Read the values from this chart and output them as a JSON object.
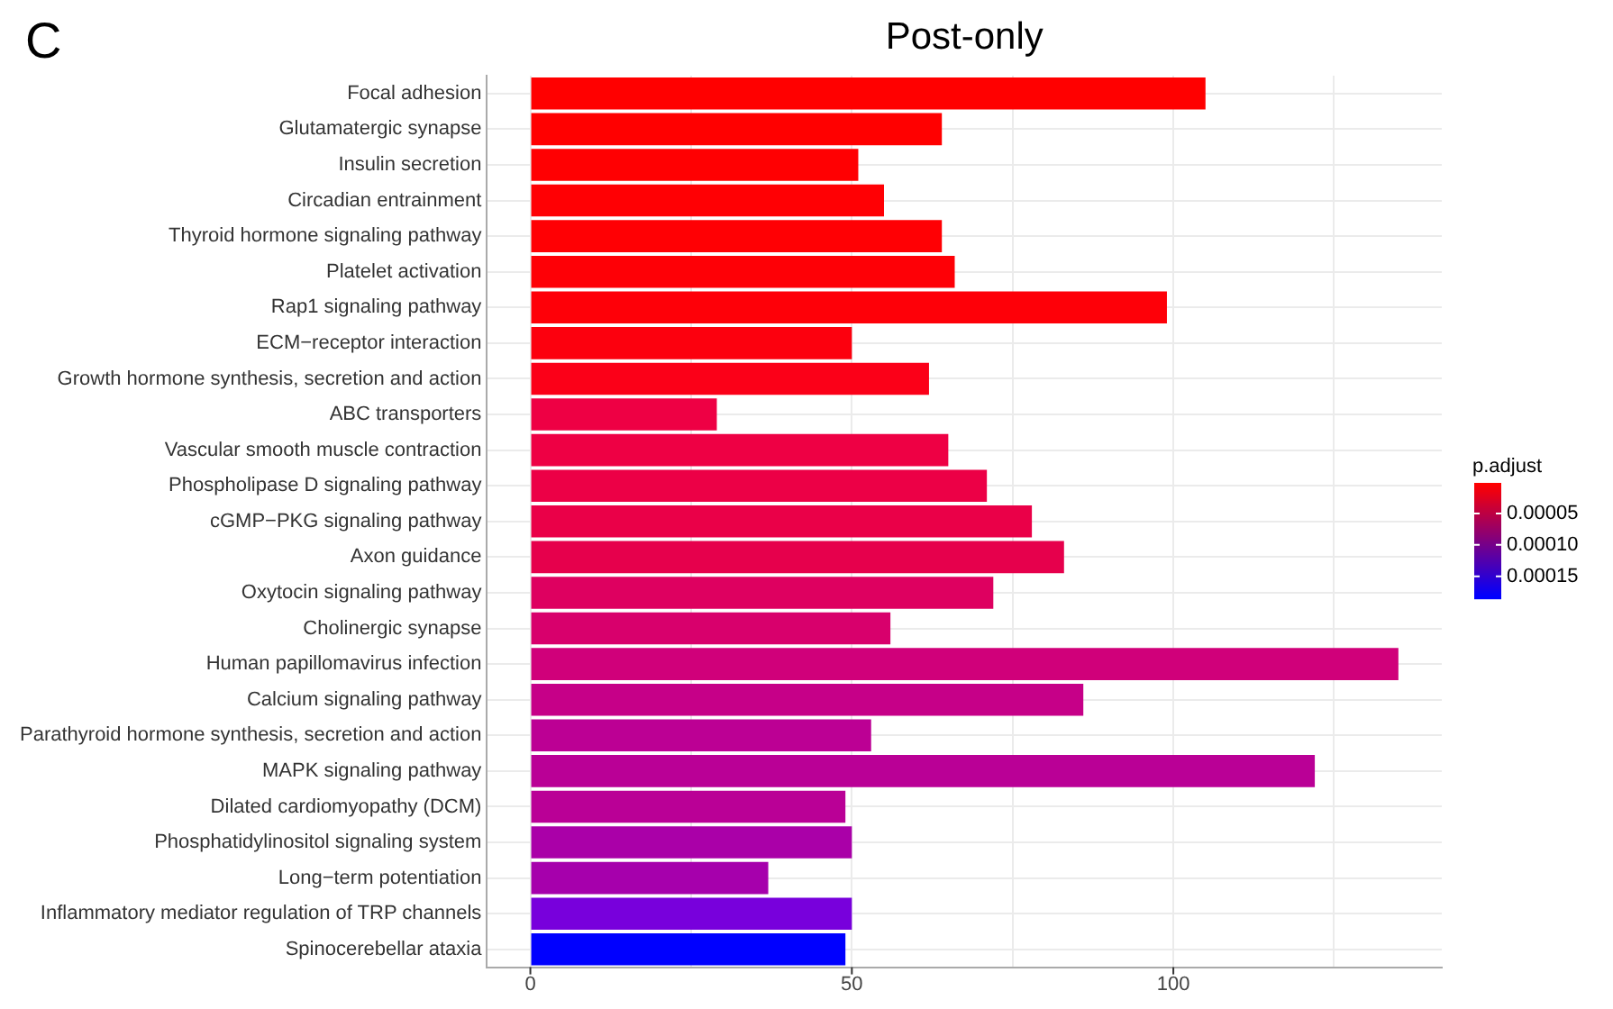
{
  "chart_data": {
    "type": "bar",
    "orientation": "horizontal",
    "title": "Post-only",
    "annotations": [
      "C"
    ],
    "clabel": "p.adjust",
    "categories": [
      "Focal adhesion",
      "Glutamatergic synapse",
      "Insulin secretion",
      "Circadian entrainment",
      "Thyroid hormone signaling pathway",
      "Platelet activation",
      "Rap1 signaling pathway",
      "ECM−receptor interaction",
      "Growth hormone synthesis, secretion and action",
      "ABC transporters",
      "Vascular smooth muscle contraction",
      "Phospholipase D signaling pathway",
      "cGMP−PKG signaling pathway",
      "Axon guidance",
      "Oxytocin signaling pathway",
      "Cholinergic synapse",
      "Human papillomavirus infection",
      "Calcium signaling pathway",
      "Parathyroid hormone synthesis, secretion and action",
      "MAPK signaling pathway",
      "Dilated cardiomyopathy (DCM)",
      "Phosphatidylinositol signaling system",
      "Long−term potentiation",
      "Inflammatory mediator regulation of TRP channels",
      "Spinocerebellar ataxia"
    ],
    "values": [
      105,
      64,
      51,
      55,
      64,
      66,
      99,
      50,
      62,
      29,
      65,
      71,
      78,
      83,
      72,
      56,
      135,
      86,
      53,
      122,
      49,
      50,
      37,
      50,
      49
    ],
    "colors": [
      "#ff0000",
      "#ff0000",
      "#ff0002",
      "#ff0004",
      "#ff0004",
      "#fe0006",
      "#fe0008",
      "#fc000e",
      "#fb0018",
      "#ee0044",
      "#ee0044",
      "#ec0046",
      "#ea0048",
      "#e6004c",
      "#de0060",
      "#d8006c",
      "#d0007a",
      "#c60088",
      "#bc0094",
      "#ba0096",
      "#ba0096",
      "#aa00a8",
      "#a600ac",
      "#7800dc",
      "#0000ff"
    ],
    "xlim": [
      -6.75,
      141.75
    ],
    "xticks": [
      0,
      {
        "value": 25,
        "label": null
      },
      50,
      {
        "value": 75,
        "label": null
      },
      100,
      {
        "value": 125,
        "label": null
      }
    ],
    "clim": [
      1e-06,
      0.000185
    ],
    "cticks": [
      {
        "value": 5e-05,
        "label": "0.00005"
      },
      {
        "value": 0.0001,
        "label": "0.00010"
      },
      {
        "value": 0.00015,
        "label": "0.00015"
      }
    ],
    "grid": true,
    "legend": false
  }
}
